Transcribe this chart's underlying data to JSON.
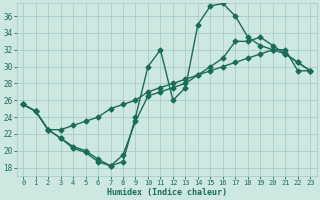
{
  "xlabel": "Humidex (Indice chaleur)",
  "bg_color": "#cce8e0",
  "grid_color": "#aaccC4",
  "line_color": "#1a6b5a",
  "xlim": [
    -0.5,
    23.5
  ],
  "ylim": [
    17.0,
    37.5
  ],
  "yticks": [
    18,
    20,
    22,
    24,
    26,
    28,
    30,
    32,
    34,
    36
  ],
  "xticks": [
    0,
    1,
    2,
    3,
    4,
    5,
    6,
    7,
    8,
    9,
    10,
    11,
    12,
    13,
    14,
    15,
    16,
    17,
    18,
    19,
    20,
    21,
    22,
    23
  ],
  "line1_x": [
    0,
    1,
    2,
    3,
    4,
    5,
    6,
    7,
    8,
    9,
    10,
    11,
    12,
    13,
    14,
    15,
    16,
    17,
    18,
    19,
    20,
    21,
    22,
    23
  ],
  "line1_y": [
    25.5,
    24.7,
    22.5,
    21.5,
    20.3,
    19.8,
    18.7,
    18.2,
    18.7,
    24.0,
    30.0,
    32.0,
    26.0,
    27.5,
    35.0,
    37.2,
    37.5,
    36.0,
    33.5,
    32.5,
    32.0,
    31.5,
    30.5,
    29.5
  ],
  "line2_x": [
    0,
    1,
    2,
    3,
    4,
    5,
    6,
    7,
    8,
    9,
    10,
    11,
    12,
    13,
    14,
    15,
    16,
    17,
    18,
    19,
    20,
    21,
    22,
    23
  ],
  "line2_y": [
    25.5,
    24.7,
    22.5,
    22.5,
    23.0,
    23.5,
    24.0,
    25.0,
    25.5,
    26.0,
    27.0,
    27.5,
    28.0,
    28.5,
    29.0,
    29.5,
    30.0,
    30.5,
    31.0,
    31.5,
    32.0,
    32.0,
    29.5,
    29.5
  ],
  "line3_x": [
    0,
    1,
    2,
    3,
    4,
    5,
    6,
    7,
    8,
    9,
    10,
    11,
    12,
    13,
    14,
    15,
    16,
    17,
    18,
    19,
    20,
    21,
    22,
    23
  ],
  "line3_y": [
    25.5,
    24.7,
    22.5,
    21.5,
    20.5,
    20.0,
    19.0,
    18.2,
    19.5,
    23.5,
    26.5,
    27.0,
    27.5,
    28.0,
    29.0,
    30.0,
    31.0,
    33.0,
    33.0,
    33.5,
    32.5,
    31.5,
    30.5,
    29.5
  ],
  "marker": "D",
  "markersize": 2.5,
  "linewidth": 1.0,
  "font_color": "#1a6b5a",
  "tick_fontsize": 5.0,
  "xlabel_fontsize": 6.0
}
